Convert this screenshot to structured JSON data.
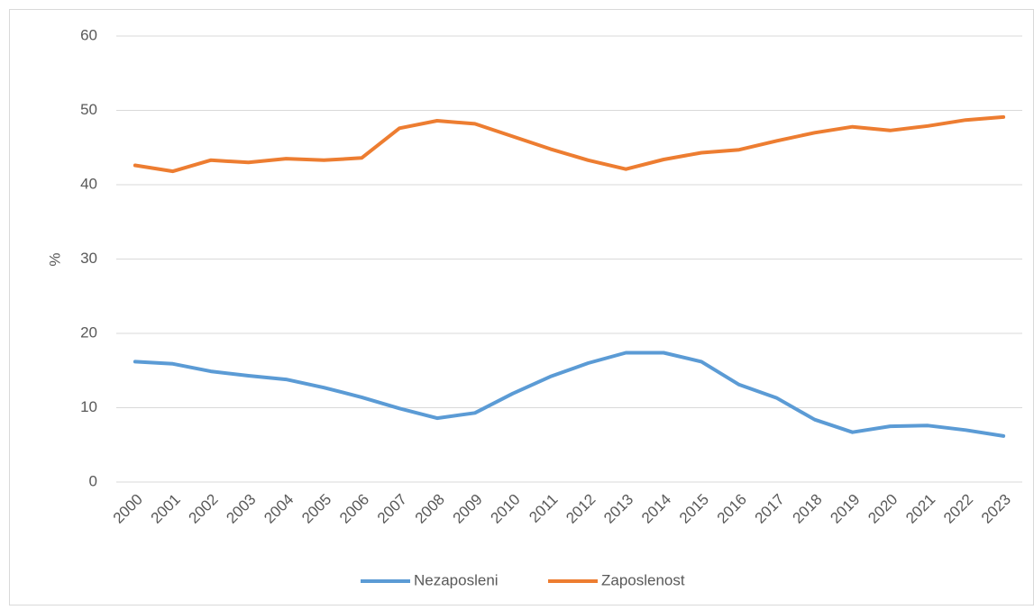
{
  "chart_data": {
    "type": "line",
    "ylabel": "%",
    "categories": [
      "2000",
      "2001",
      "2002",
      "2003",
      "2004",
      "2005",
      "2006",
      "2007",
      "2008",
      "2009",
      "2010",
      "2011",
      "2012",
      "2013",
      "2014",
      "2015",
      "2016",
      "2017",
      "2018",
      "2019",
      "2020",
      "2021",
      "2022",
      "2023"
    ],
    "series": [
      {
        "name": "Nezaposleni",
        "color": "#5b9bd5",
        "values": [
          16.2,
          15.9,
          14.9,
          14.3,
          13.8,
          12.7,
          11.4,
          9.9,
          8.6,
          9.3,
          11.9,
          14.2,
          16.0,
          17.4,
          17.4,
          16.2,
          13.1,
          11.3,
          8.4,
          6.7,
          7.5,
          7.6,
          7.0,
          6.2
        ]
      },
      {
        "name": "Zaposlenost",
        "color": "#ed7d31",
        "values": [
          42.6,
          41.8,
          43.3,
          43.0,
          43.5,
          43.3,
          43.6,
          47.6,
          48.6,
          48.2,
          46.5,
          44.8,
          43.3,
          42.1,
          43.4,
          44.3,
          44.7,
          45.9,
          47.0,
          47.8,
          47.3,
          47.9,
          48.7,
          49.1
        ]
      }
    ],
    "ylim": [
      0,
      60
    ],
    "yticks": [
      0,
      10,
      20,
      30,
      40,
      50,
      60
    ],
    "grid": true,
    "legend": "bottom"
  }
}
